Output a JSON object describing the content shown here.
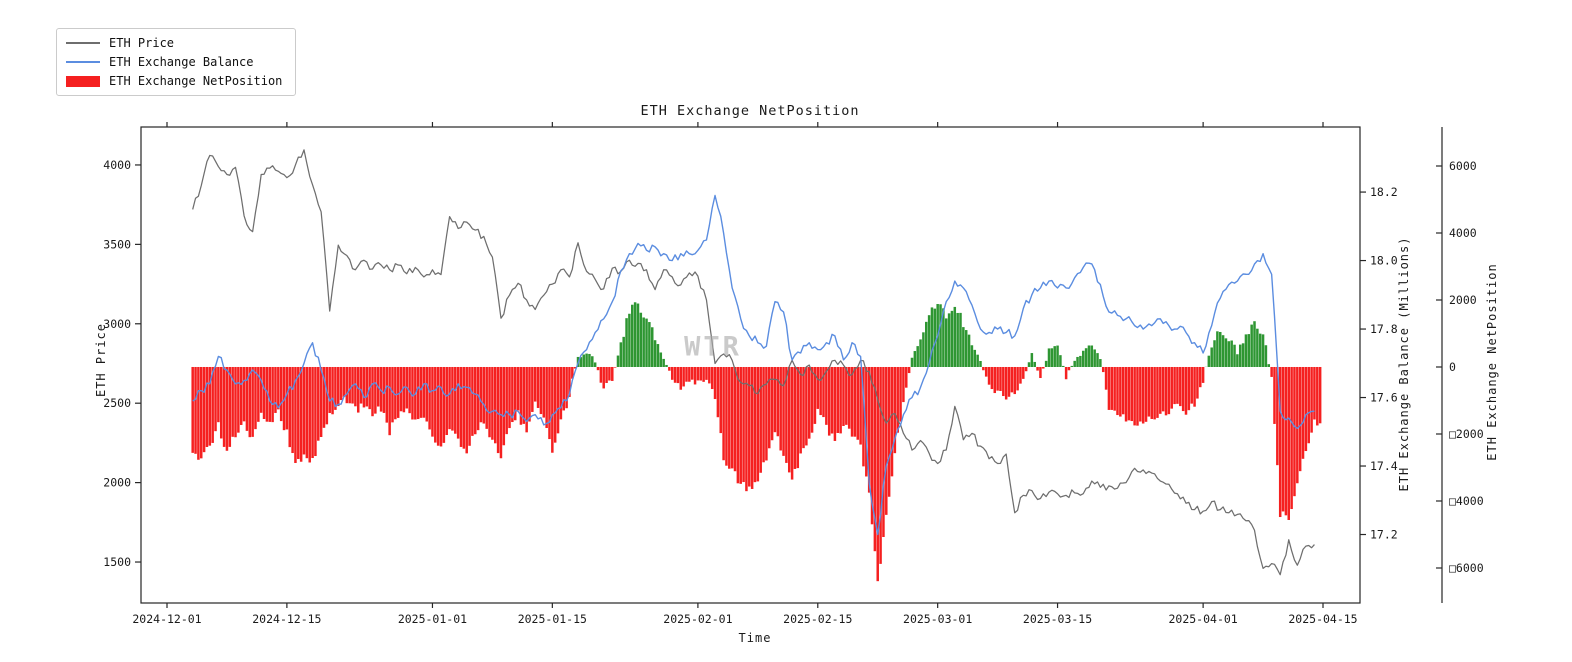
{
  "title": "ETH Exchange NetPosition",
  "watermark": "WTR",
  "colors": {
    "price_line": "#6e6e6e",
    "balance_line": "#5b8de0",
    "netpos_negative": "#f52020",
    "netpos_positive": "#2e9632",
    "spine": "#262626",
    "legend_border": "#cbcbcb",
    "watermark": "#ababab",
    "background": "#ffffff"
  },
  "legend": {
    "items": [
      {
        "label": "ETH Price",
        "swatch": "line",
        "color": "#6e6e6e"
      },
      {
        "label": "ETH Exchange Balance",
        "swatch": "line",
        "color": "#5b8de0"
      },
      {
        "label": "ETH Exchange NetPosition",
        "swatch": "patch",
        "color": "#f52020"
      }
    ]
  },
  "axes": {
    "x": {
      "label": "Time",
      "origin_date": "2024-12-01",
      "ticks": [
        {
          "day": 0,
          "label": "2024-12-01"
        },
        {
          "day": 14,
          "label": "2024-12-15"
        },
        {
          "day": 31,
          "label": "2025-01-01"
        },
        {
          "day": 45,
          "label": "2025-01-15"
        },
        {
          "day": 62,
          "label": "2025-02-01"
        },
        {
          "day": 76,
          "label": "2025-02-15"
        },
        {
          "day": 90,
          "label": "2025-03-01"
        },
        {
          "day": 104,
          "label": "2025-03-15"
        },
        {
          "day": 121,
          "label": "2025-04-01"
        },
        {
          "day": 135,
          "label": "2025-04-15"
        }
      ]
    },
    "price": {
      "label": "ETH Price",
      "ticks": [
        {
          "value": 4000,
          "label": "4000"
        },
        {
          "value": 3500,
          "label": "3500"
        },
        {
          "value": 3000,
          "label": "3000"
        },
        {
          "value": 2500,
          "label": "2500"
        },
        {
          "value": 2000,
          "label": "2000"
        },
        {
          "value": 1500,
          "label": "1500"
        }
      ]
    },
    "balance": {
      "label": "ETH Exchange Balance (Millions)",
      "ticks": [
        {
          "value": 18.2,
          "label": "18.2"
        },
        {
          "value": 18.0,
          "label": "18.0"
        },
        {
          "value": 17.8,
          "label": "17.8"
        },
        {
          "value": 17.6,
          "label": "17.6"
        },
        {
          "value": 17.4,
          "label": "17.4"
        },
        {
          "value": 17.2,
          "label": "17.2"
        }
      ]
    },
    "netpos": {
      "label": "ETH Exchange NetPosition",
      "ticks": [
        {
          "value": 6000,
          "label": "6000"
        },
        {
          "value": 4000,
          "label": "4000"
        },
        {
          "value": 2000,
          "label": "2000"
        },
        {
          "value": 0,
          "label": "0"
        },
        {
          "value": -2000,
          "label": "□2000"
        },
        {
          "value": -4000,
          "label": "□4000"
        },
        {
          "value": -6000,
          "label": "□6000"
        }
      ]
    }
  },
  "chart_data": {
    "type": "line+bar",
    "title": "ETH Exchange NetPosition",
    "xlabel": "Time",
    "x_start_date": "2024-12-04",
    "x_end_date": "2025-04-14",
    "x_freq": "daily",
    "grid": false,
    "legend_position": "upper-left-outside",
    "series": [
      {
        "name": "ETH Price",
        "type": "line",
        "yaxis": "left",
        "ylabel": "ETH Price",
        "ylim": [
          1242,
          4239
        ],
        "color": "#6e6e6e",
        "values": [
          3720,
          3870,
          4060,
          3990,
          3940,
          3985,
          3680,
          3580,
          3940,
          3980,
          3960,
          3920,
          4000,
          4095,
          3875,
          3705,
          3080,
          3495,
          3430,
          3340,
          3400,
          3345,
          3370,
          3340,
          3370,
          3315,
          3355,
          3295,
          3340,
          3310,
          3675,
          3600,
          3640,
          3590,
          3550,
          3420,
          3035,
          3180,
          3255,
          3150,
          3090,
          3180,
          3250,
          3340,
          3295,
          3510,
          3330,
          3280,
          3220,
          3350,
          3330,
          3400,
          3380,
          3340,
          3215,
          3340,
          3295,
          3245,
          3320,
          3300,
          3150,
          2750,
          2810,
          2770,
          2630,
          2610,
          2560,
          2620,
          2650,
          2610,
          2770,
          2680,
          2740,
          2650,
          2700,
          2770,
          2740,
          2680,
          2770,
          2700,
          2520,
          2375,
          2435,
          2310,
          2205,
          2265,
          2185,
          2120,
          2205,
          2480,
          2270,
          2310,
          2230,
          2150,
          2120,
          2180,
          1810,
          1920,
          1950,
          1900,
          1940,
          1930,
          1920,
          1935,
          1930,
          2010,
          1970,
          1980,
          1965,
          2000,
          2090,
          2080,
          2060,
          2010,
          1990,
          1930,
          1870,
          1830,
          1820,
          1880,
          1830,
          1810,
          1800,
          1760,
          1700,
          1460,
          1490,
          1420,
          1640,
          1480,
          1600,
          1610
        ]
      },
      {
        "name": "ETH Exchange Balance",
        "type": "line",
        "yaxis": "right",
        "ylabel": "ETH Exchange Balance (Millions)",
        "ylim": [
          17.0,
          18.39
        ],
        "color": "#5b8de0",
        "values": [
          17.59,
          17.62,
          17.64,
          17.72,
          17.68,
          17.64,
          17.65,
          17.68,
          17.65,
          17.59,
          17.57,
          17.61,
          17.65,
          17.7,
          17.76,
          17.68,
          17.59,
          17.58,
          17.61,
          17.64,
          17.6,
          17.64,
          17.62,
          17.63,
          17.61,
          17.63,
          17.61,
          17.64,
          17.62,
          17.63,
          17.61,
          17.64,
          17.63,
          17.61,
          17.58,
          17.56,
          17.55,
          17.55,
          17.56,
          17.53,
          17.55,
          17.52,
          17.55,
          17.57,
          17.61,
          17.7,
          17.74,
          17.79,
          17.83,
          17.88,
          17.97,
          18.02,
          18.05,
          18.03,
          18.04,
          18.02,
          18.0,
          18.02,
          18.02,
          18.03,
          18.06,
          18.19,
          18.08,
          17.92,
          17.83,
          17.78,
          17.76,
          17.75,
          17.88,
          17.85,
          17.71,
          17.73,
          17.76,
          17.74,
          17.76,
          17.78,
          17.71,
          17.76,
          17.72,
          17.35,
          17.2,
          17.4,
          17.48,
          17.55,
          17.6,
          17.63,
          17.7,
          17.78,
          17.88,
          17.94,
          17.92,
          17.87,
          17.8,
          17.79,
          17.8,
          17.79,
          17.78,
          17.86,
          17.9,
          17.92,
          17.94,
          17.92,
          17.92,
          17.95,
          17.98,
          17.99,
          17.93,
          17.85,
          17.84,
          17.83,
          17.81,
          17.8,
          17.81,
          17.83,
          17.81,
          17.8,
          17.79,
          17.76,
          17.73,
          17.81,
          17.89,
          17.93,
          17.94,
          17.96,
          17.99,
          18.02,
          17.96,
          17.56,
          17.54,
          17.51,
          17.55,
          17.56
        ]
      },
      {
        "name": "ETH Exchange NetPosition",
        "type": "bar",
        "yaxis": "far-right",
        "ylabel": "ETH Exchange NetPosition",
        "ylim": [
          -7045,
          7164
        ],
        "color_positive": "#2e9632",
        "color_negative": "#f52020",
        "values": [
          -2500,
          -2700,
          -2400,
          -1700,
          -2600,
          -2000,
          -1600,
          -2200,
          -1500,
          -1750,
          -1300,
          -2000,
          -2900,
          -2750,
          -2850,
          -2000,
          -1450,
          -1150,
          -950,
          -1300,
          -1100,
          -1400,
          -1200,
          -1900,
          -1500,
          -1250,
          -1600,
          -1400,
          -2100,
          -2450,
          -1800,
          -2200,
          -2550,
          -1900,
          -1600,
          -2300,
          -2600,
          -1900,
          -1400,
          -2000,
          -1100,
          -1550,
          -2450,
          -1700,
          -800,
          300,
          500,
          150,
          -650,
          -400,
          700,
          1700,
          1850,
          1400,
          900,
          300,
          -350,
          -600,
          -450,
          -500,
          -350,
          -900,
          -2700,
          -3050,
          -3500,
          -3700,
          -3300,
          -2750,
          -1900,
          -2600,
          -3300,
          -2700,
          -2100,
          -1300,
          -1800,
          -2250,
          -1700,
          -2000,
          -2400,
          -3700,
          -6450,
          -4500,
          -2500,
          -1000,
          300,
          900,
          1600,
          2000,
          1500,
          1900,
          1300,
          600,
          150,
          -500,
          -800,
          -900,
          -700,
          -400,
          400,
          -350,
          550,
          650,
          -300,
          150,
          500,
          600,
          300,
          -1200,
          -1400,
          -1500,
          -1700,
          -1600,
          -1500,
          -1400,
          -1300,
          -1200,
          -1300,
          -1100,
          -400,
          700,
          1100,
          900,
          400,
          900,
          1250,
          1000,
          -300,
          -4400,
          -4450,
          -3500,
          -2500,
          -1700
        ]
      }
    ]
  }
}
